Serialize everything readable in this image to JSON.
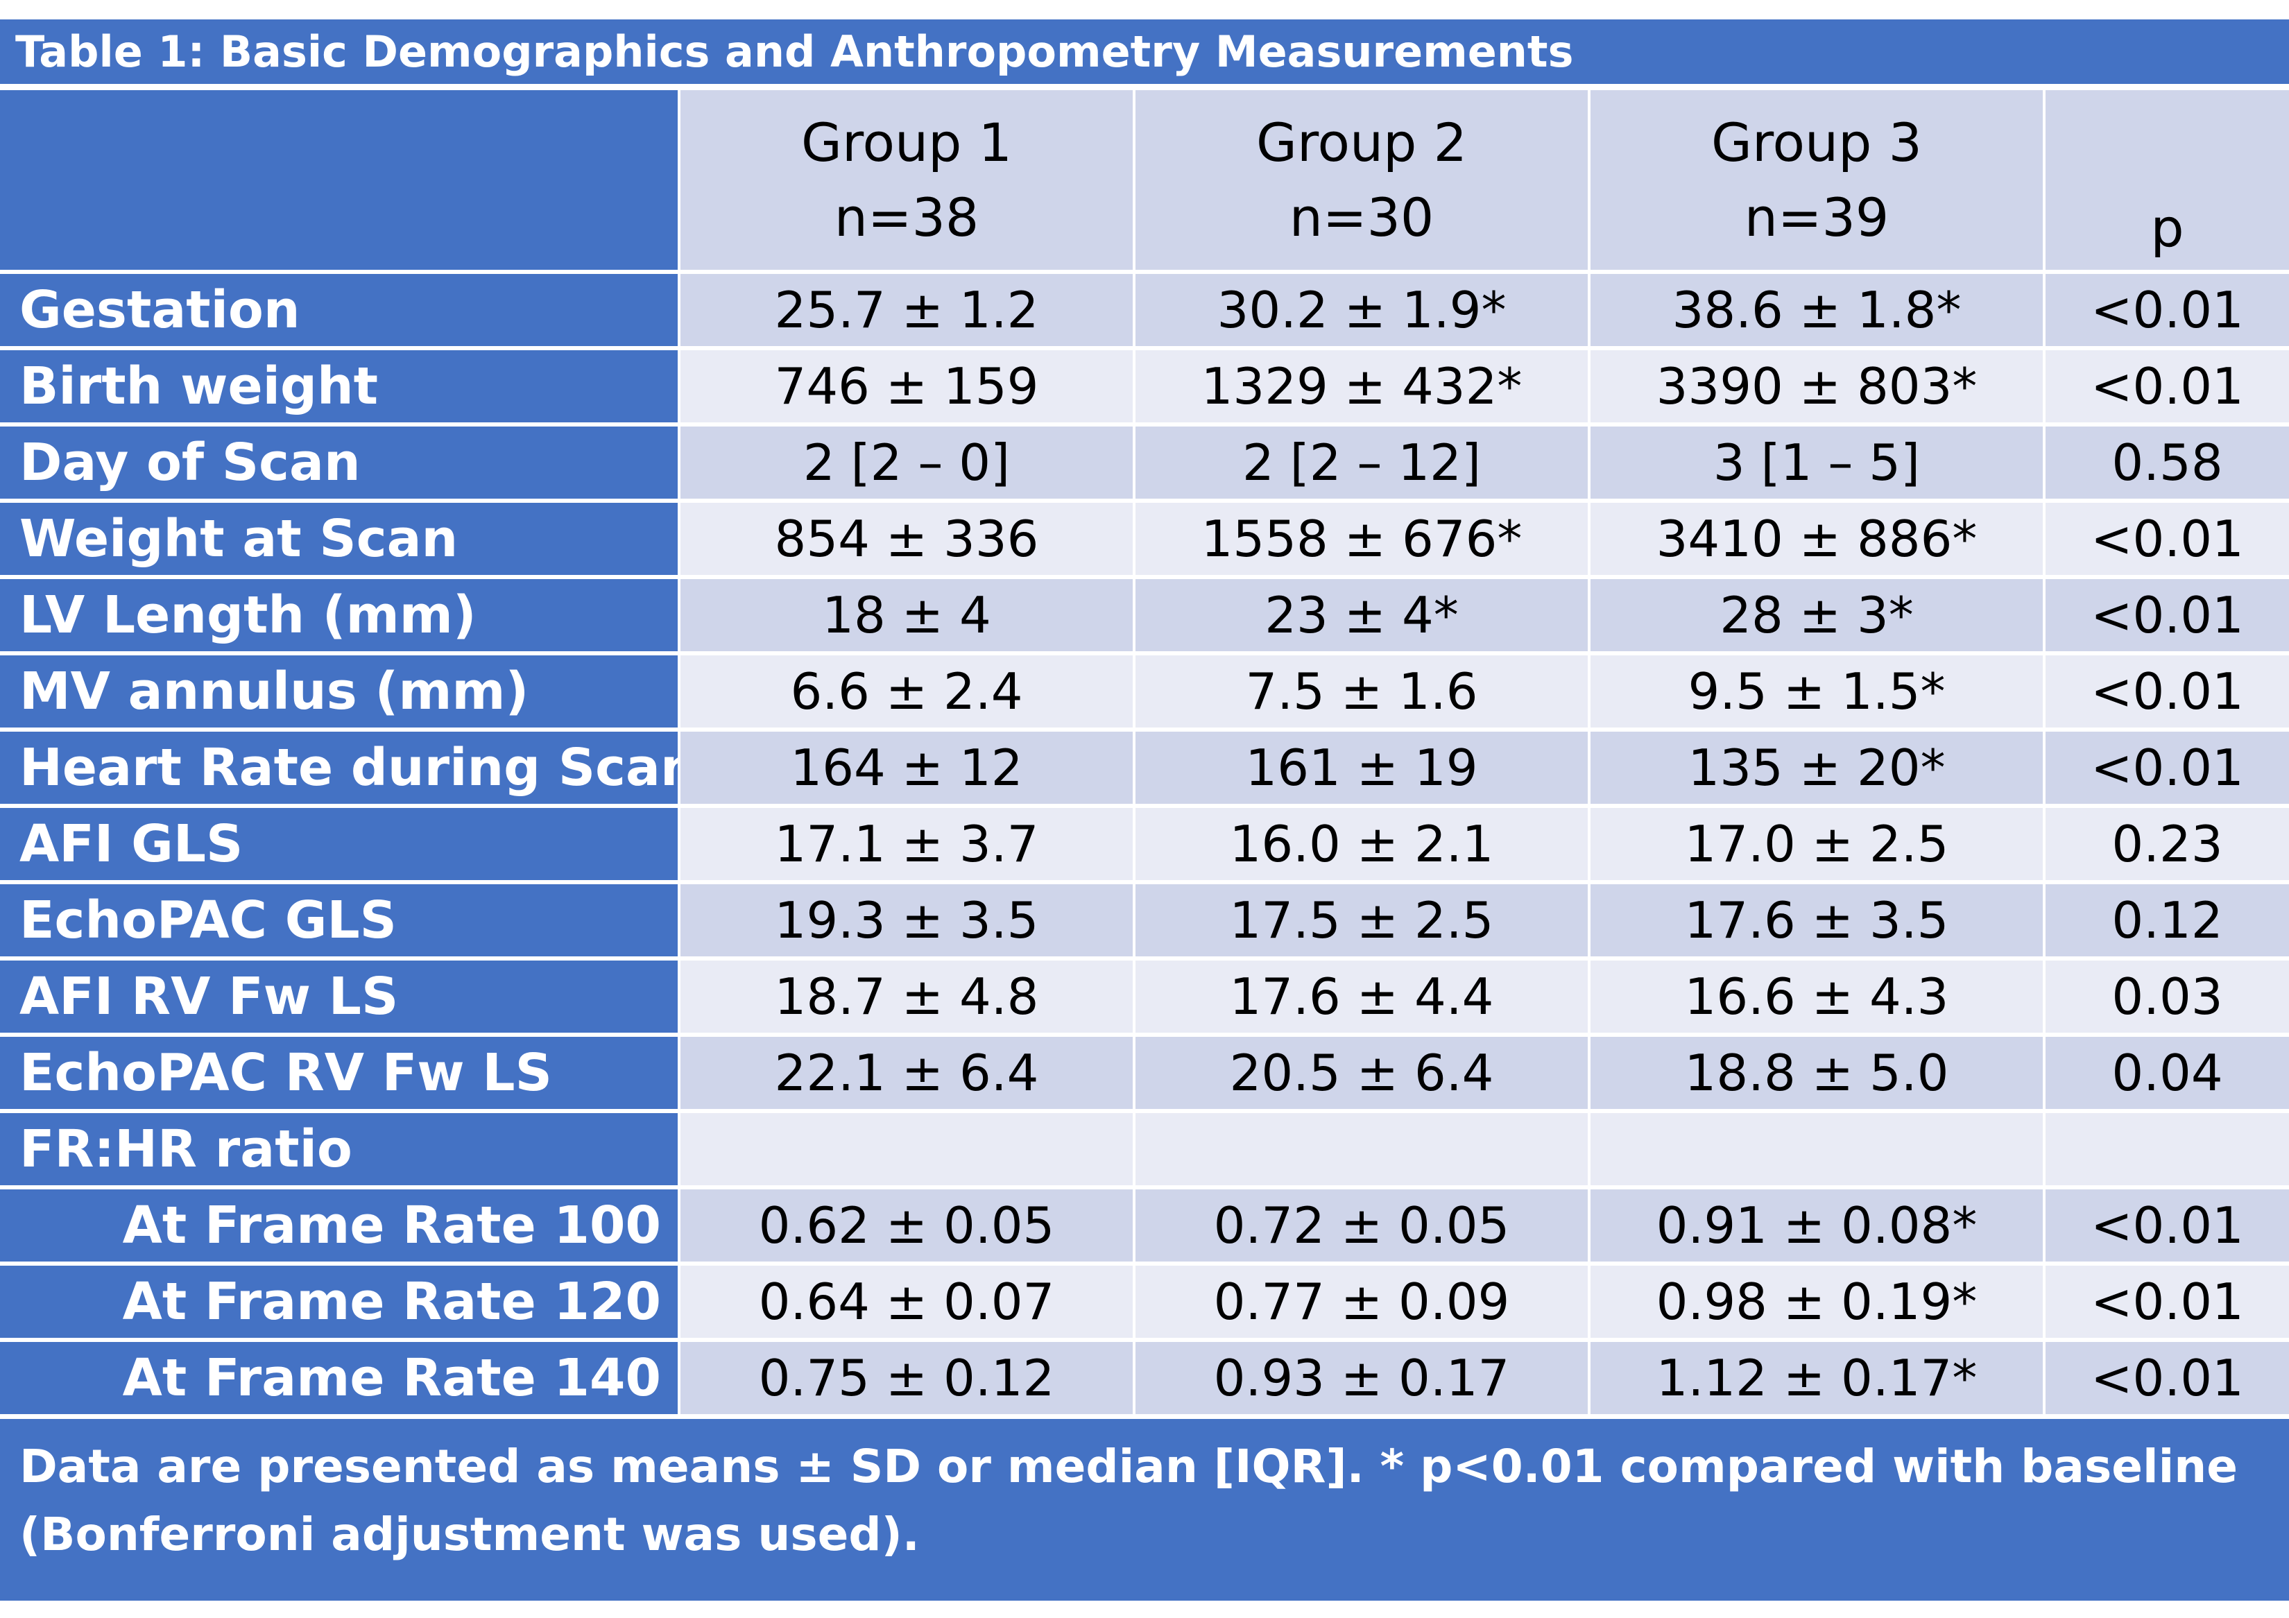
{
  "title": "Table 1: Basic Demographics and Anthropometry Measurements",
  "header": {
    "groups": [
      {
        "name": "Group 1",
        "n": "n=38"
      },
      {
        "name": "Group 2",
        "n": "n=30"
      },
      {
        "name": "Group 3",
        "n": "n=39"
      }
    ],
    "p_label": "p"
  },
  "rows": [
    {
      "label": "Gestation",
      "g1": "25.7 ± 1.2",
      "g2": "30.2 ± 1.9*",
      "g3": "38.6 ± 1.8*",
      "p": "<0.01"
    },
    {
      "label": "Birth weight",
      "g1": "746 ± 159",
      "g2": "1329 ± 432*",
      "g3": "3390 ± 803*",
      "p": "<0.01"
    },
    {
      "label": "Day of Scan",
      "g1": "2 [2 – 0]",
      "g2": "2 [2 – 12]",
      "g3": "3 [1 – 5]",
      "p": "0.58"
    },
    {
      "label": "Weight at Scan",
      "g1": "854 ± 336",
      "g2": "1558 ± 676*",
      "g3": "3410 ± 886*",
      "p": "<0.01"
    },
    {
      "label": "LV Length (mm)",
      "g1": "18 ± 4",
      "g2": "23 ± 4*",
      "g3": "28 ± 3*",
      "p": "<0.01"
    },
    {
      "label": "MV annulus (mm)",
      "g1": "6.6 ± 2.4",
      "g2": "7.5 ± 1.6",
      "g3": "9.5 ± 1.5*",
      "p": "<0.01"
    },
    {
      "label": "Heart Rate during Scan",
      "g1": "164 ± 12",
      "g2": "161 ± 19",
      "g3": "135 ± 20*",
      "p": "<0.01"
    },
    {
      "label": "AFI GLS",
      "g1": "17.1 ± 3.7",
      "g2": "16.0 ± 2.1",
      "g3": "17.0 ± 2.5",
      "p": "0.23"
    },
    {
      "label": "EchoPAC GLS",
      "g1": "19.3 ± 3.5",
      "g2": "17.5 ± 2.5",
      "g3": "17.6 ± 3.5",
      "p": "0.12"
    },
    {
      "label": "AFI RV Fw LS",
      "g1": "18.7 ± 4.8",
      "g2": "17.6 ± 4.4",
      "g3": "16.6 ± 4.3",
      "p": "0.03"
    },
    {
      "label": "EchoPAC RV Fw LS",
      "g1": "22.1 ± 6.4",
      "g2": "20.5 ± 6.4",
      "g3": "18.8 ± 5.0",
      "p": "0.04"
    },
    {
      "label": "FR:HR ratio",
      "g1": "",
      "g2": "",
      "g3": "",
      "p": ""
    },
    {
      "label": "At Frame Rate 100",
      "g1": "0.62 ± 0.05",
      "g2": "0.72 ± 0.05",
      "g3": "0.91 ± 0.08*",
      "p": "<0.01"
    },
    {
      "label": "At Frame Rate 120",
      "g1": "0.64 ± 0.07",
      "g2": "0.77 ± 0.09",
      "g3": "0.98 ± 0.19*",
      "p": "<0.01"
    },
    {
      "label": "At Frame Rate 140",
      "g1": "0.75 ± 0.12",
      "g2": "0.93 ± 0.17",
      "g3": "1.12 ± 0.17*",
      "p": "<0.01"
    }
  ],
  "footnote": {
    "line1": "Data are presented as means ± SD or median [IQR]. * p<0.01 compared with baseline",
    "line2": "(Bonferroni adjustment was used)."
  },
  "colors": {
    "header_blue": "#4472c4",
    "row_shade_dark": "#cfd5ea",
    "row_shade_light": "#e9ebf5"
  }
}
